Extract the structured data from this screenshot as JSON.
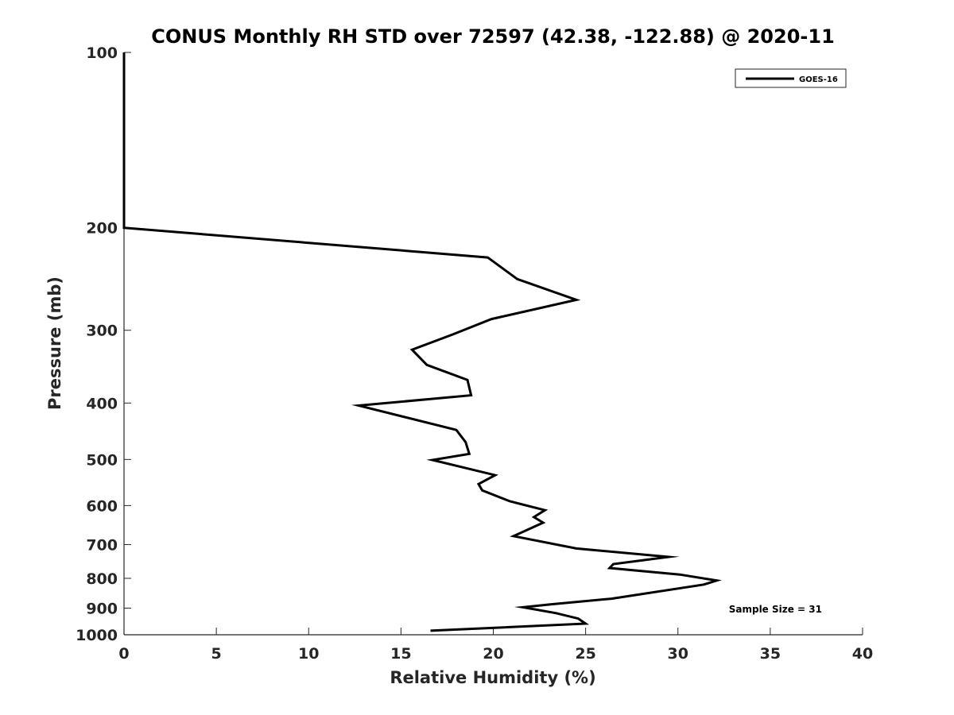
{
  "chart_data": {
    "type": "line",
    "title": "CONUS Monthly RH STD over 72597 (42.38, -122.88) @ 2020-11",
    "xlabel": "Relative Humidity (%)",
    "ylabel": "Pressure (mb)",
    "xlim": [
      0,
      40
    ],
    "ylim": [
      100,
      1000
    ],
    "y_reversed": true,
    "y_scale": "log",
    "x_ticks": [
      "0",
      "5",
      "10",
      "15",
      "20",
      "25",
      "30",
      "35",
      "40"
    ],
    "y_ticks": [
      "100",
      "200",
      "300",
      "400",
      "500",
      "600",
      "700",
      "800",
      "900",
      "1000"
    ],
    "grid": false,
    "legend_position": "top-right",
    "series": [
      {
        "name": "GOES-16",
        "color": "#000000",
        "points": [
          [
            0,
            100
          ],
          [
            0,
            150
          ],
          [
            0,
            200
          ],
          [
            19.7,
            225
          ],
          [
            21.3,
            245
          ],
          [
            24.5,
            266
          ],
          [
            19.9,
            287
          ],
          [
            17.8,
            305
          ],
          [
            15.6,
            324
          ],
          [
            16.4,
            344
          ],
          [
            18.6,
            365
          ],
          [
            18.8,
            388
          ],
          [
            12.7,
            404
          ],
          [
            18.0,
            445
          ],
          [
            18.5,
            467
          ],
          [
            18.7,
            489
          ],
          [
            16.7,
            501
          ],
          [
            20.1,
            532
          ],
          [
            19.2,
            551
          ],
          [
            19.4,
            565
          ],
          [
            20.9,
            590
          ],
          [
            22.8,
            611
          ],
          [
            22.2,
            628
          ],
          [
            22.7,
            642
          ],
          [
            21.1,
            677
          ],
          [
            24.5,
            711
          ],
          [
            29.5,
            735
          ],
          [
            26.5,
            756
          ],
          [
            26.3,
            768
          ],
          [
            30.1,
            788
          ],
          [
            32.1,
            807
          ],
          [
            31.4,
            820
          ],
          [
            26.4,
            867
          ],
          [
            23.1,
            887
          ],
          [
            21.6,
            897
          ],
          [
            23.4,
            918
          ],
          [
            24.6,
            938
          ],
          [
            25.0,
            957
          ],
          [
            16.6,
            984
          ]
        ]
      }
    ],
    "annotation": "Sample Size = 31"
  }
}
